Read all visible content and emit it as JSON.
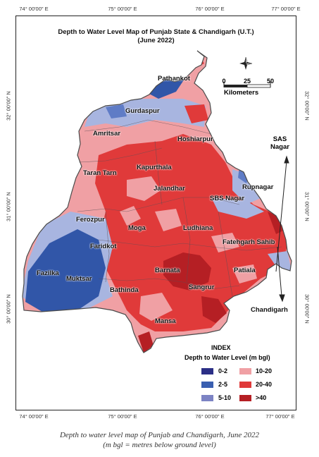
{
  "title": {
    "line1": "Depth to Water Level Map of Punjab State & Chandigarh (U.T.)",
    "line2": "(June 2022)"
  },
  "longitude_ticks": [
    "74° 00'00\" E",
    "75° 00'00\" E",
    "76° 00'00\" E",
    "77° 00'00\" E"
  ],
  "latitude_ticks": [
    "32° 00'00\" N",
    "31° 00'00\" N",
    "30° 00'00\" N"
  ],
  "scale_bar": {
    "ticks": [
      "0",
      "25",
      "50"
    ],
    "unit": "Kilometers"
  },
  "districts": {
    "pathankot": "Pathankot",
    "gurdaspur": "Gurdaspur",
    "amritsar": "Amritsar",
    "hoshiarpur": "Hoshiarpur",
    "taran_tarn": "Taran Tarn",
    "kapurthala": "Kapurthala",
    "jalandhar": "Jalandhar",
    "rupnagar": "Rupnagar",
    "sbs_nagar": "SBS Nagar",
    "ferozpur": "Ferozpur",
    "moga": "Moga",
    "ludhiana": "Ludhiana",
    "faridkot": "Faridkot",
    "fatehgarh_sahib": "Fatehgarh Sahib",
    "fazilka": "Fazilka",
    "muktsar": "Muktsar",
    "barnata": "Barnata",
    "patiala": "Patiala",
    "bathinda": "Bathinda",
    "sangrur": "Sangrur",
    "chandigarh": "Chandigarh",
    "mansa": "Mansa",
    "sas_nagar_1": "SAS",
    "sas_nagar_2": "Nagar"
  },
  "legend": {
    "title": "INDEX",
    "subtitle": "Depth to Water Level (m bgl)",
    "items": [
      {
        "label": "0-2",
        "color": "#2b2f86"
      },
      {
        "label": "2-5",
        "color": "#3a5fb0"
      },
      {
        "label": "5-10",
        "color": "#7c83c4"
      },
      {
        "label": "10-20",
        "color": "#f0a0a4"
      },
      {
        "label": "20-40",
        "color": "#e03a3a"
      },
      {
        "label": ">40",
        "color": "#b51f24"
      }
    ]
  },
  "caption": {
    "line1": "Depth to water level map of Punjab and Chandigarh, June 2022",
    "line2": "(m bgl = metres below ground level)"
  },
  "map_colors": {
    "outline": "#4a4a4a",
    "light_blue": "#a8b5e0",
    "mid_blue": "#5f7cc6",
    "dark_blue": "#3156a8",
    "pink": "#f0a0a4",
    "red": "#e03a3a",
    "dark_red": "#b51f24"
  }
}
